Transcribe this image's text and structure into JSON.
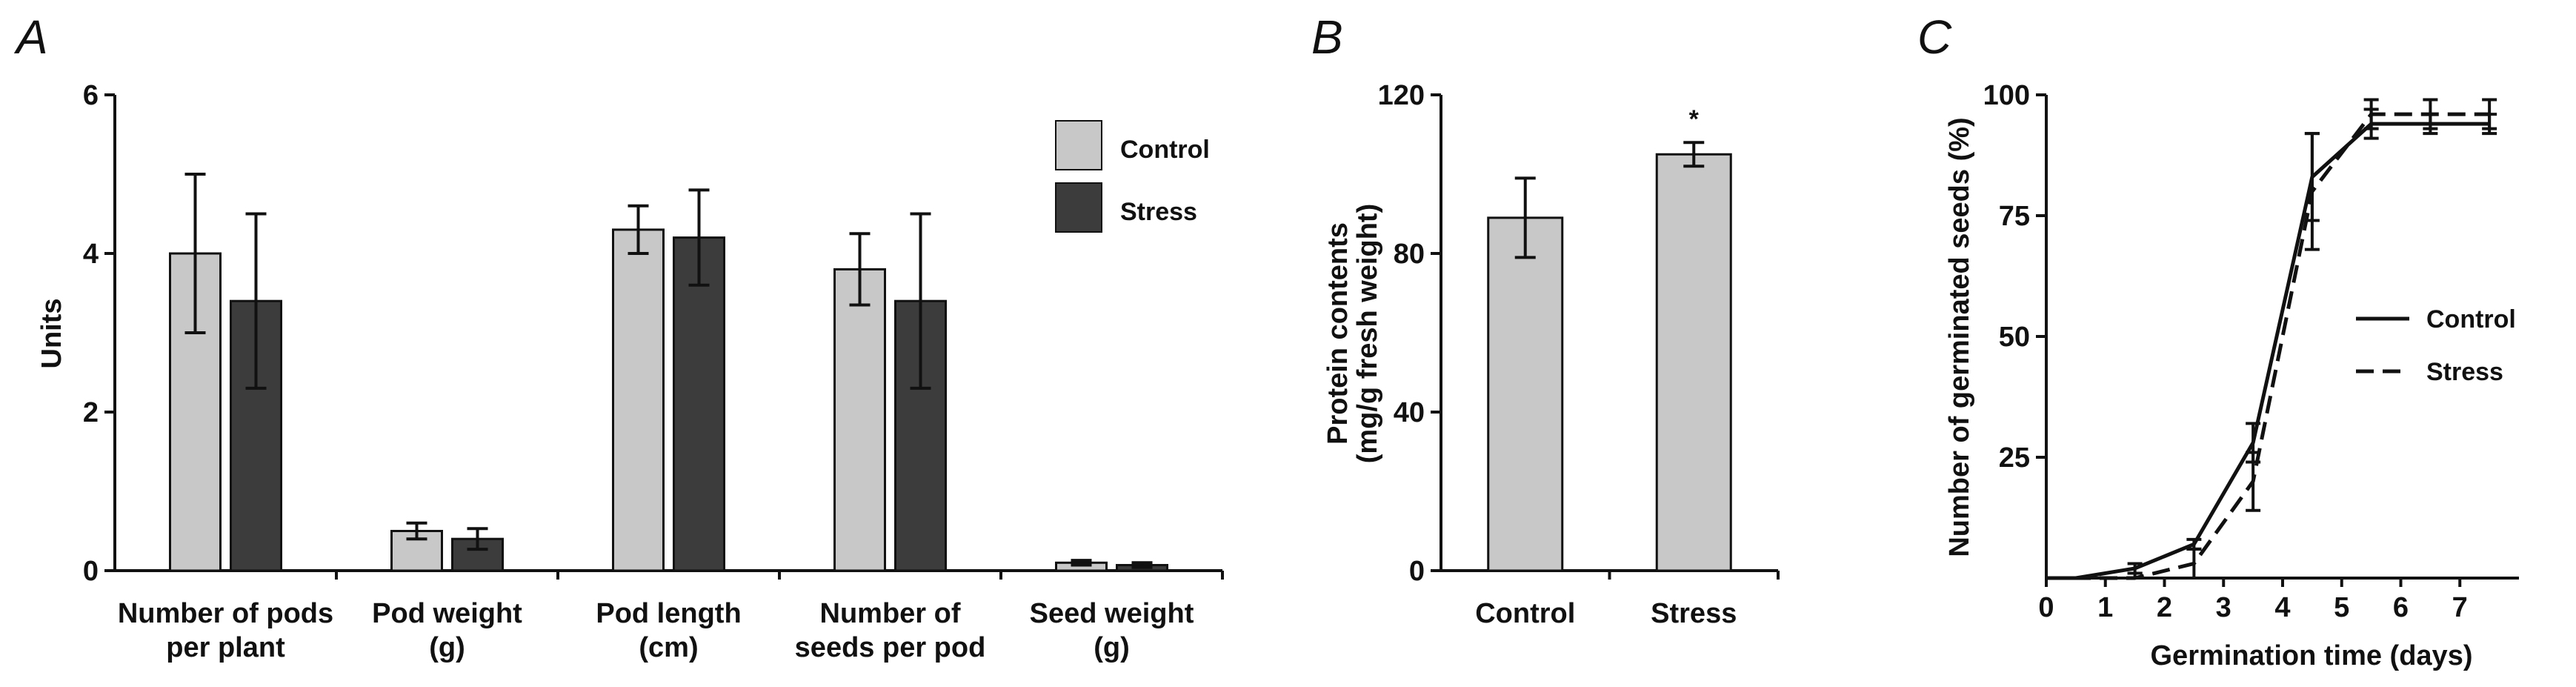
{
  "chart_data": [
    {
      "panel": "A",
      "type": "bar",
      "title": "",
      "xlabel": "",
      "ylabel": "Units",
      "ylim": [
        0,
        6
      ],
      "yticks": [
        "0",
        "2",
        "4",
        "6"
      ],
      "categories": [
        [
          "Number of pods",
          "per plant"
        ],
        [
          "Pod weight",
          "(g)"
        ],
        [
          "Pod length",
          "(cm)"
        ],
        [
          "Number of",
          "seeds per pod"
        ],
        [
          "Seed weight",
          "(g)"
        ]
      ],
      "series": [
        {
          "name": "Control",
          "color": "#c8c8c8",
          "values": [
            4.0,
            0.5,
            4.3,
            3.8,
            0.1
          ],
          "errors": [
            1.0,
            0.1,
            0.3,
            0.45,
            0.03
          ]
        },
        {
          "name": "Stress",
          "color": "#3c3c3c",
          "values": [
            3.4,
            0.4,
            4.2,
            3.4,
            0.07
          ],
          "errors": [
            1.1,
            0.13,
            0.6,
            1.1,
            0.03
          ]
        }
      ],
      "legend": {
        "position": "top-right",
        "entries": [
          "Control",
          "Stress"
        ]
      }
    },
    {
      "panel": "B",
      "type": "bar",
      "title": "",
      "xlabel": "",
      "ylabel": [
        "Protein contents",
        "(mg/g fresh weight)"
      ],
      "ylim": [
        0,
        120
      ],
      "yticks": [
        "0",
        "40",
        "80",
        "120"
      ],
      "categories": [
        "Control",
        "Stress"
      ],
      "values": [
        89,
        105
      ],
      "errors": [
        10,
        3
      ],
      "color": "#c8c8c8",
      "annotation": "*"
    },
    {
      "panel": "C",
      "type": "line",
      "title": "",
      "xlabel": "Germination time (days)",
      "ylabel": "Number of germinated seeds (%)",
      "xlim": [
        0,
        8
      ],
      "ylim": [
        0,
        100
      ],
      "xticks": [
        "0",
        "1",
        "2",
        "3",
        "4",
        "5",
        "6",
        "7"
      ],
      "yticks": [
        "25",
        "50",
        "75",
        "100"
      ],
      "series": [
        {
          "name": "Control",
          "style": "solid",
          "x": [
            0,
            0.5,
            1.5,
            2.5,
            3.5,
            4.5,
            5.5,
            6.5,
            7.5
          ],
          "y": [
            0,
            0,
            2,
            7,
            28,
            83,
            94,
            94,
            94
          ],
          "errors": [
            0,
            0,
            1,
            1,
            4,
            9,
            3,
            2,
            2
          ]
        },
        {
          "name": "Stress",
          "style": "dashed",
          "x": [
            0,
            0.5,
            1.5,
            2.5,
            3.5,
            4.5,
            5.5,
            6.5,
            7.5
          ],
          "y": [
            0,
            0,
            0,
            3,
            20,
            80,
            96,
            96,
            96
          ],
          "errors": [
            0,
            0,
            1,
            3,
            6,
            12,
            3,
            3,
            3
          ]
        }
      ],
      "legend": {
        "position": "middle-right",
        "entries": [
          "Control",
          "Stress"
        ]
      }
    }
  ]
}
